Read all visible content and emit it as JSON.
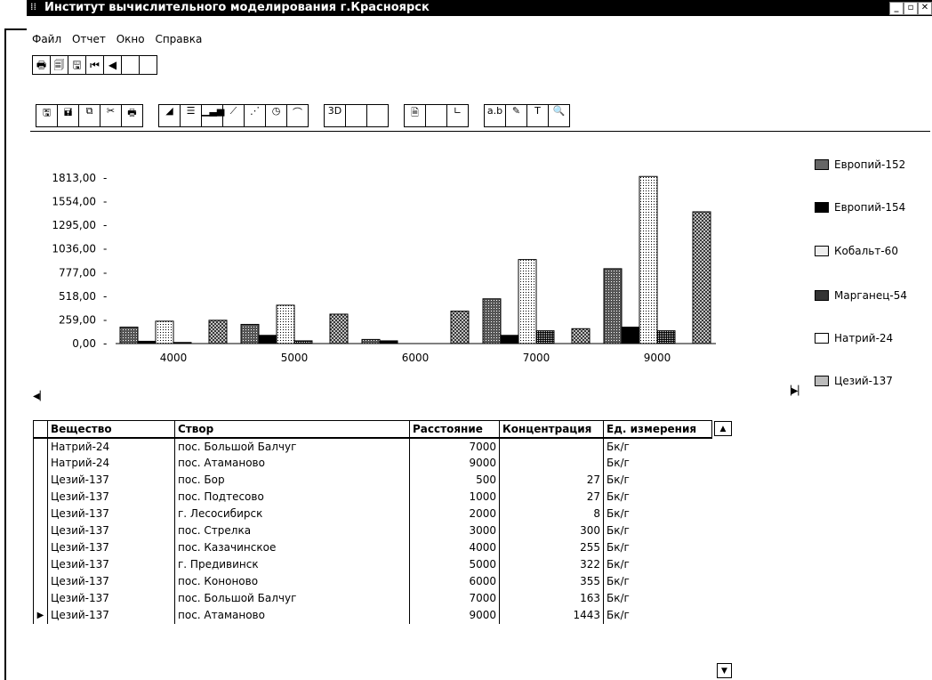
{
  "window": {
    "title": "Институт вычислительного моделирования г.Красноярск",
    "controls": [
      "_",
      "🗗",
      "✕"
    ]
  },
  "menu": [
    {
      "label": "Файл"
    },
    {
      "label": "Отчет"
    },
    {
      "label": "Окно"
    },
    {
      "label": "Справка"
    }
  ],
  "toolbar1": {
    "buttons": [
      {
        "name": "print-icon",
        "glyph": "🖶"
      },
      {
        "name": "print-preview-icon",
        "glyph": "🗐"
      },
      {
        "name": "export-icon",
        "glyph": "🖫"
      },
      {
        "name": "first-page-icon",
        "glyph": "⏮"
      },
      {
        "name": "prev-page-icon",
        "glyph": "◀"
      },
      {
        "name": "next-page-icon",
        "glyph": ""
      },
      {
        "name": "last-page-icon",
        "glyph": ""
      }
    ]
  },
  "toolbar2": {
    "groups": [
      [
        {
          "name": "save-icon",
          "glyph": "🖫"
        },
        {
          "name": "save-as-icon",
          "glyph": "🖬"
        },
        {
          "name": "copy-icon",
          "glyph": "⧉"
        },
        {
          "name": "cut-icon",
          "glyph": "✂"
        },
        {
          "name": "print-icon",
          "glyph": "🖶"
        }
      ],
      [
        {
          "name": "area-chart-icon",
          "glyph": "◢"
        },
        {
          "name": "hbar-chart-icon",
          "glyph": "☰"
        },
        {
          "name": "bar-chart-icon",
          "glyph": "▁▃▅"
        },
        {
          "name": "line-chart-icon",
          "glyph": "⟋"
        },
        {
          "name": "scatter-chart-icon",
          "glyph": "⋰"
        },
        {
          "name": "pie-chart-icon",
          "glyph": "◷"
        },
        {
          "name": "step-chart-icon",
          "glyph": "⌒"
        }
      ],
      [
        {
          "name": "3d-icon",
          "glyph": "3D"
        },
        {
          "name": "blank-a-icon",
          "glyph": ""
        },
        {
          "name": "blank-b-icon",
          "glyph": ""
        }
      ],
      [
        {
          "name": "document-icon",
          "glyph": "🗎"
        },
        {
          "name": "blank-c-icon",
          "glyph": ""
        },
        {
          "name": "axes-icon",
          "glyph": "∟"
        }
      ],
      [
        {
          "name": "text-icon",
          "glyph": "a.b"
        },
        {
          "name": "palette-icon",
          "glyph": "✎"
        },
        {
          "name": "font-icon",
          "glyph": "T"
        },
        {
          "name": "zoom-icon",
          "glyph": "🔍"
        }
      ]
    ]
  },
  "chart_data": {
    "type": "bar",
    "categories": [
      "4000",
      "5000",
      "6000",
      "7000",
      "9000"
    ],
    "yticks": [
      "0,00",
      "259,00",
      "518,00",
      "777,00",
      "1036,00",
      "1295,00",
      "1554,00",
      "1813,00"
    ],
    "ylim": [
      0,
      1813
    ],
    "series": [
      {
        "name": "Европий-152",
        "values": [
          180,
          210,
          45,
          490,
          820
        ],
        "pattern": "dark"
      },
      {
        "name": "Европий-154",
        "values": [
          25,
          90,
          30,
          90,
          180
        ],
        "pattern": "black"
      },
      {
        "name": "Кобальт-60",
        "values": [
          245,
          420,
          0,
          920,
          1830
        ],
        "pattern": "light"
      },
      {
        "name": "Марганец-54",
        "values": [
          12,
          30,
          0,
          140,
          140
        ],
        "pattern": "checker"
      },
      {
        "name": "Натрий-24",
        "values": [
          0,
          0,
          0,
          0,
          0
        ],
        "pattern": "white"
      },
      {
        "name": "Цезий-137",
        "values": [
          255,
          322,
          355,
          163,
          1443
        ],
        "pattern": "cross"
      }
    ],
    "legend_position": "right"
  },
  "legend_labels": [
    "Европий-152",
    "Европий-154",
    "Кобальт-60",
    "Марганец-54",
    "Натрий-24",
    "Цезий-137"
  ],
  "colors": {
    "titlebar": "#000000",
    "background": "#ffffff"
  },
  "grid": {
    "columns": [
      "Вещество",
      "Створ",
      "Расстояние",
      "Концентрация",
      "Ед. измерения"
    ],
    "rows": [
      [
        "Натрий-24",
        "пос. Большой Балчуг",
        "7000",
        "",
        "Бк/г"
      ],
      [
        "Натрий-24",
        "пос. Атаманово",
        "9000",
        "",
        "Бк/г"
      ],
      [
        "Цезий-137",
        "пос. Бор",
        "500",
        "27",
        "Бк/г"
      ],
      [
        "Цезий-137",
        "пос. Подтесово",
        "1000",
        "27",
        "Бк/г"
      ],
      [
        "Цезий-137",
        "г. Лесосибирск",
        "2000",
        "8",
        "Бк/г"
      ],
      [
        "Цезий-137",
        "пос. Стрелка",
        "3000",
        "300",
        "Бк/г"
      ],
      [
        "Цезий-137",
        "пос. Казачинское",
        "4000",
        "255",
        "Бк/г"
      ],
      [
        "Цезий-137",
        "г. Предивинск",
        "5000",
        "322",
        "Бк/г"
      ],
      [
        "Цезий-137",
        "пос. Кононово",
        "6000",
        "355",
        "Бк/г"
      ],
      [
        "Цезий-137",
        "пос. Большой Балчуг",
        "7000",
        "163",
        "Бк/г"
      ],
      [
        "Цезий-137",
        "пос. Атаманово",
        "9000",
        "1443",
        "Бк/г"
      ]
    ],
    "current_row_marker": "▶"
  }
}
